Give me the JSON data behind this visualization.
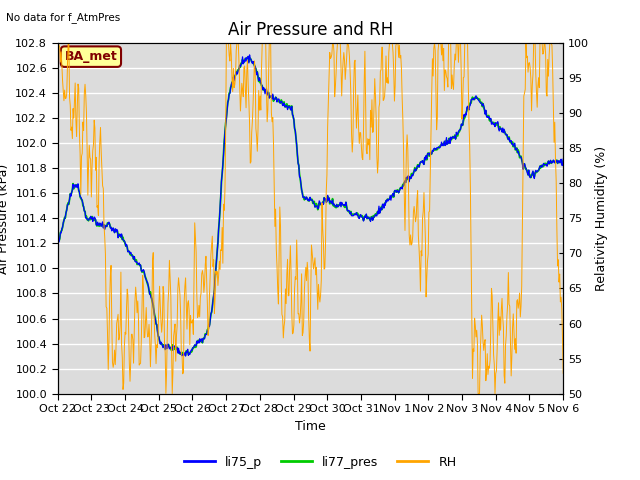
{
  "title": "Air Pressure and RH",
  "subtitle": "No data for f_AtmPres",
  "annotation": "BA_met",
  "xlabel": "Time",
  "ylabel_left": "Air Pressure (kPa)",
  "ylabel_right": "Relativity Humidity (%)",
  "ylim_left": [
    100.0,
    102.8
  ],
  "ylim_right": [
    50,
    100
  ],
  "yticks_left": [
    100.0,
    100.2,
    100.4,
    100.6,
    100.8,
    101.0,
    101.2,
    101.4,
    101.6,
    101.8,
    102.0,
    102.2,
    102.4,
    102.6,
    102.8
  ],
  "yticks_right": [
    50,
    55,
    60,
    65,
    70,
    75,
    80,
    85,
    90,
    95,
    100
  ],
  "xtick_labels": [
    "Oct 22",
    "Oct 23",
    "Oct 24",
    "Oct 25",
    "Oct 26",
    "Oct 27",
    "Oct 28",
    "Oct 29",
    "Oct 30",
    "Oct 31",
    "Nov 1",
    "Nov 2",
    "Nov 3",
    "Nov 4",
    "Nov 5",
    "Nov 6"
  ],
  "legend_labels": [
    "li75_p",
    "li77_pres",
    "RH"
  ],
  "line_colors_list": [
    "#0000ff",
    "#00cc00",
    "#ffa500"
  ],
  "plot_bg_color": "#dcdcdc",
  "grid_color": "#ffffff",
  "title_fontsize": 12,
  "label_fontsize": 9,
  "tick_fontsize": 8,
  "annotation_facecolor": "#ffff99",
  "annotation_edgecolor": "#800000",
  "annotation_textcolor": "#800000"
}
